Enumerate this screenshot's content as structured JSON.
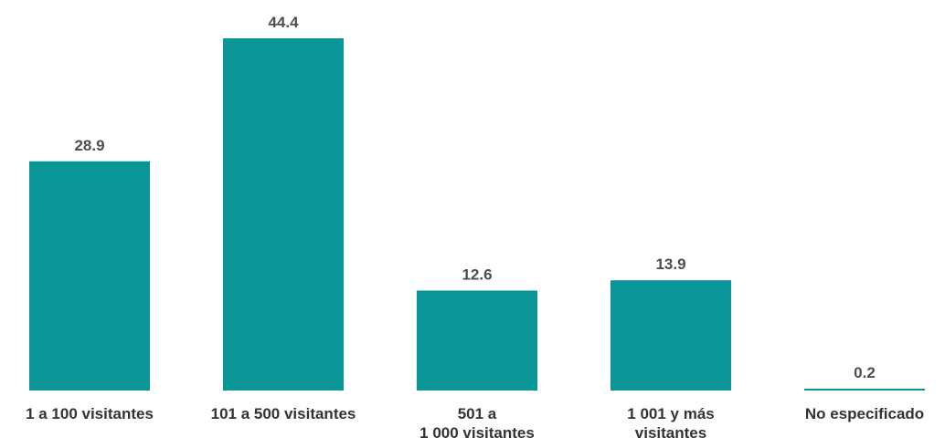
{
  "chart_data": {
    "type": "bar",
    "categories": [
      [
        "1 a 100 visitantes"
      ],
      [
        "101 a 500 visitantes"
      ],
      [
        "501 a",
        "1 000 visitantes"
      ],
      [
        "1 001 y más",
        "visitantes"
      ],
      [
        "No especificado"
      ]
    ],
    "values": [
      28.9,
      44.4,
      12.6,
      13.9,
      0.2
    ],
    "value_labels": [
      "28.9",
      "44.4",
      "12.6",
      "13.9",
      "0.2"
    ],
    "bar_color": "#0a9696",
    "ylim": [
      0,
      44.4
    ],
    "grid": false,
    "legend": "none",
    "title": "",
    "xlabel": "",
    "ylabel": ""
  }
}
